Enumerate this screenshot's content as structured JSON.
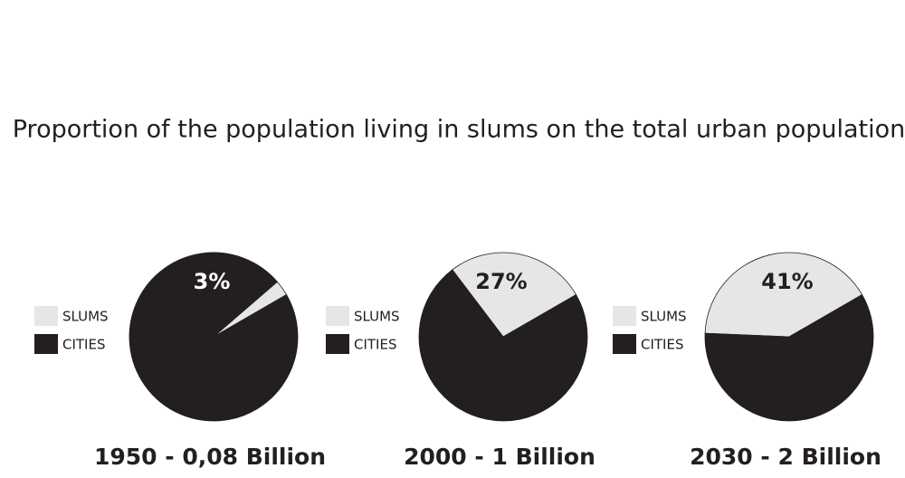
{
  "title": "Proportion of the population living in slums on the total urban population",
  "chart_data": [
    {
      "type": "pie",
      "title": "1950 - 0,08 Billion",
      "categories": [
        "SLUMS",
        "CITIES"
      ],
      "values": [
        3,
        97
      ],
      "value_labels": [
        "3%",
        null
      ],
      "colors": [
        "#e6e6e6",
        "#231f20"
      ]
    },
    {
      "type": "pie",
      "title": "2000 - 1 Billion",
      "categories": [
        "SLUMS",
        "CITIES"
      ],
      "values": [
        27,
        73
      ],
      "value_labels": [
        "27%",
        null
      ],
      "colors": [
        "#e6e6e6",
        "#231f20"
      ]
    },
    {
      "type": "pie",
      "title": "2030 - 2 Billion",
      "categories": [
        "SLUMS",
        "CITIES"
      ],
      "values": [
        41,
        59
      ],
      "value_labels": [
        "41%",
        null
      ],
      "colors": [
        "#e6e6e6",
        "#231f20"
      ]
    }
  ]
}
